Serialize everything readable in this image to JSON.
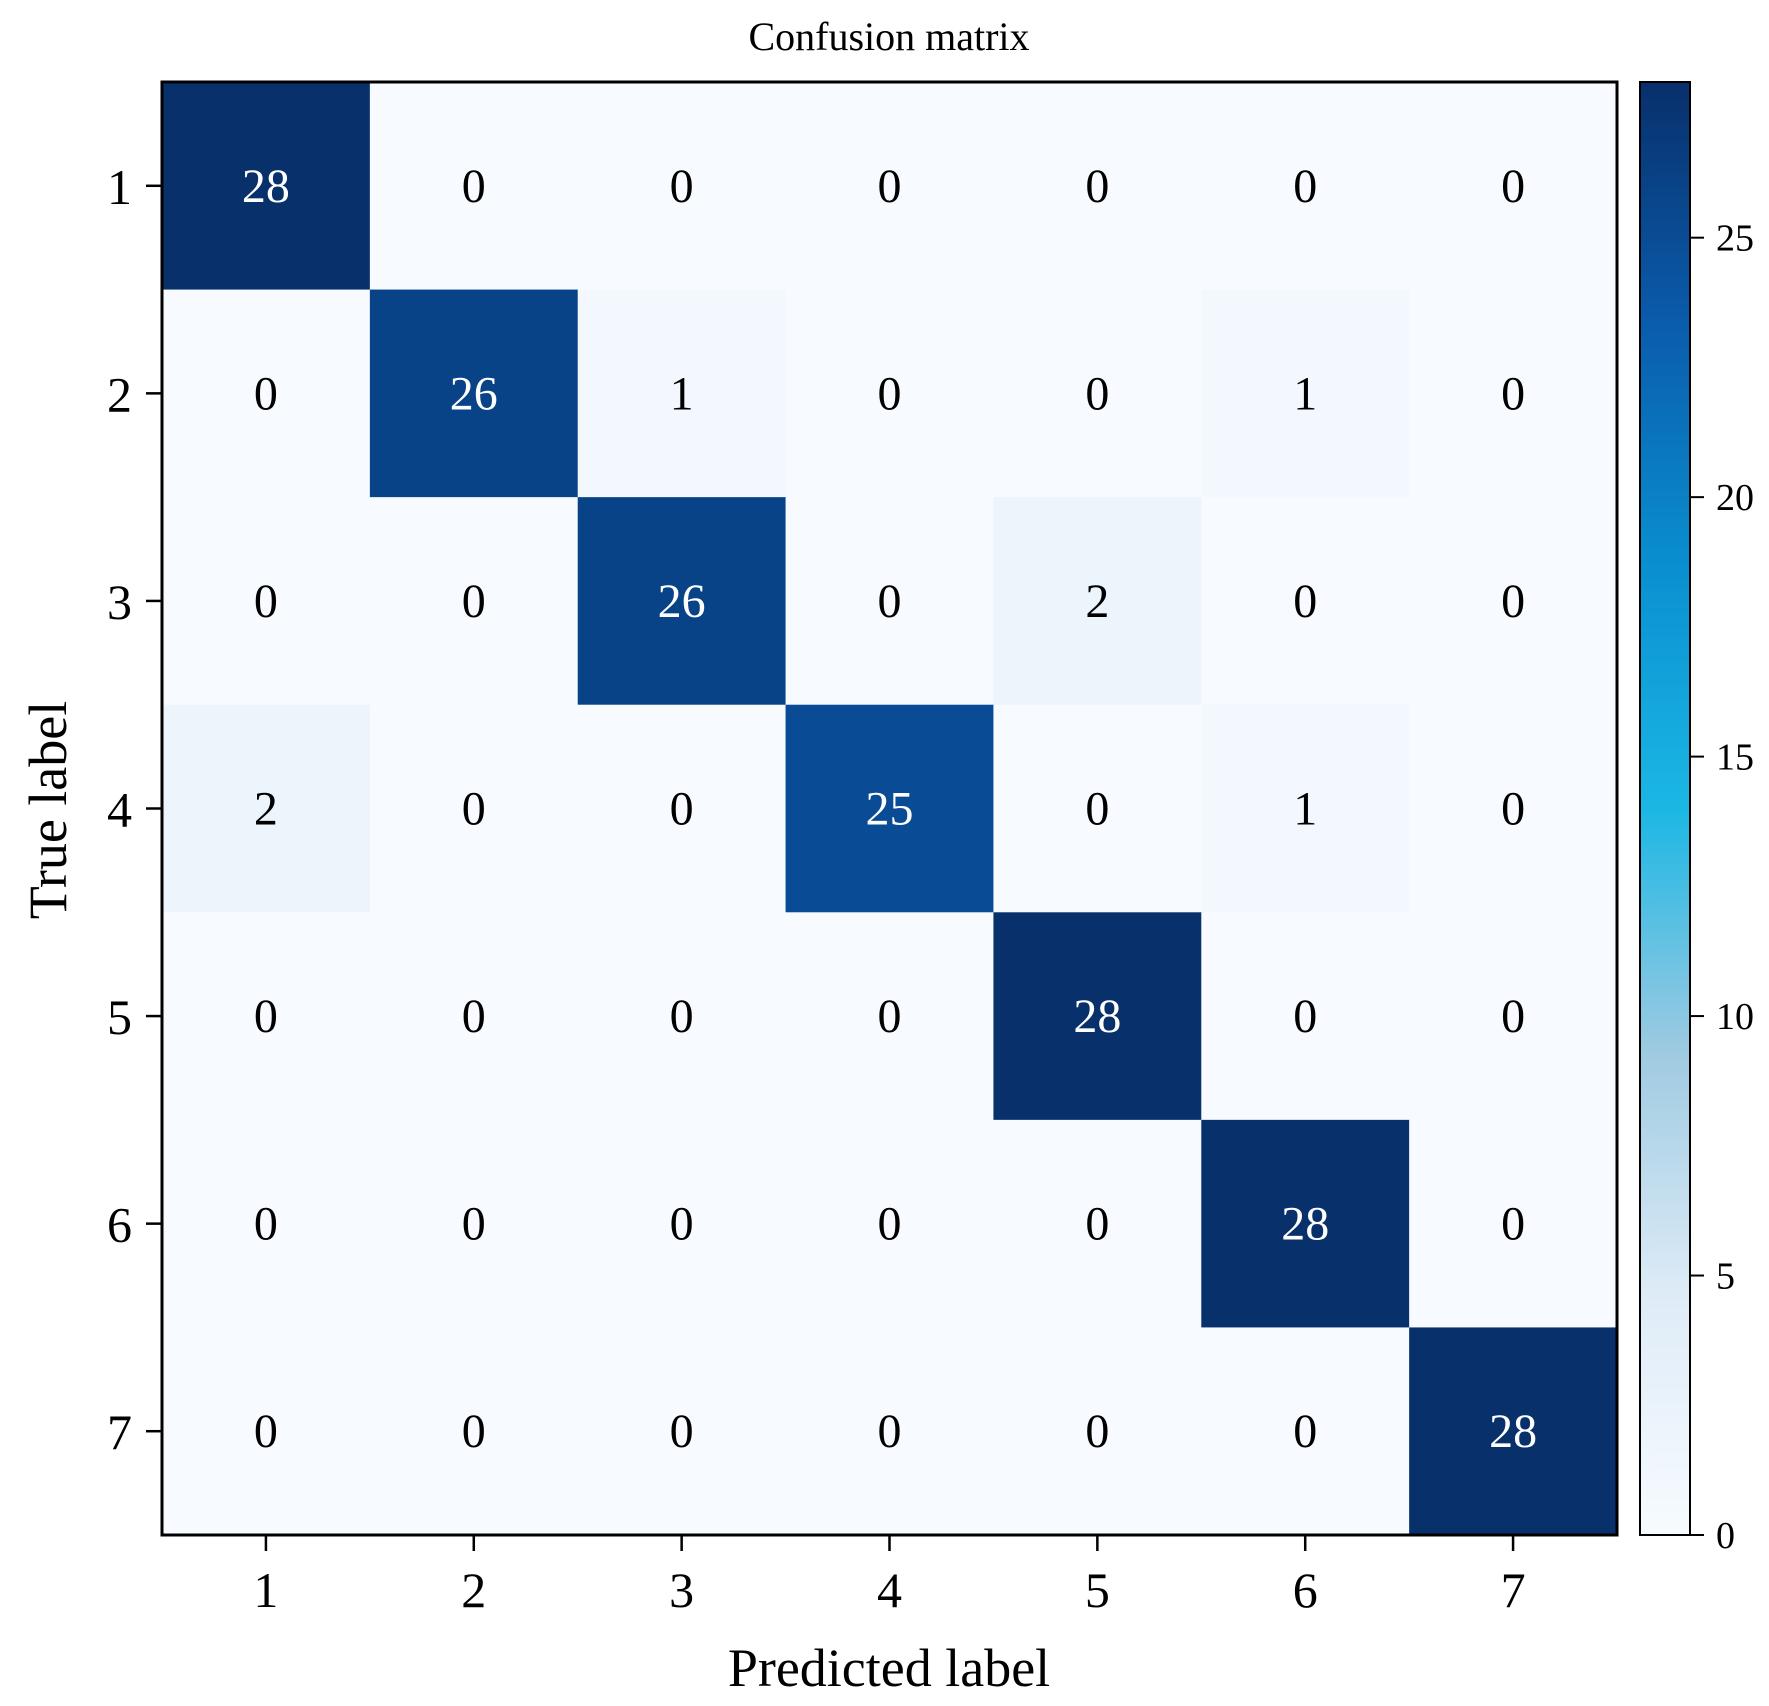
{
  "chart_data": {
    "type": "heatmap",
    "title": "Confusion matrix",
    "xlabel": "Predicted label",
    "ylabel": "True label",
    "x_categories": [
      "1",
      "2",
      "3",
      "4",
      "5",
      "6",
      "7"
    ],
    "y_categories": [
      "1",
      "2",
      "3",
      "4",
      "5",
      "6",
      "7"
    ],
    "matrix": [
      [
        28,
        0,
        0,
        0,
        0,
        0,
        0
      ],
      [
        0,
        26,
        1,
        0,
        0,
        1,
        0
      ],
      [
        0,
        0,
        26,
        0,
        2,
        0,
        0
      ],
      [
        2,
        0,
        0,
        25,
        0,
        1,
        0
      ],
      [
        0,
        0,
        0,
        0,
        28,
        0,
        0
      ],
      [
        0,
        0,
        0,
        0,
        0,
        28,
        0
      ],
      [
        0,
        0,
        0,
        0,
        0,
        0,
        28
      ]
    ],
    "colorbar": {
      "range": [
        0,
        28
      ],
      "ticks": [
        0,
        5,
        10,
        15,
        20,
        25
      ],
      "colormap": [
        "#f7fbff",
        "#deebf7",
        "#9ecae1",
        "#1bb7e4",
        "#0a8fd1",
        "#0a5cac",
        "#08306b"
      ]
    },
    "grid": false
  }
}
